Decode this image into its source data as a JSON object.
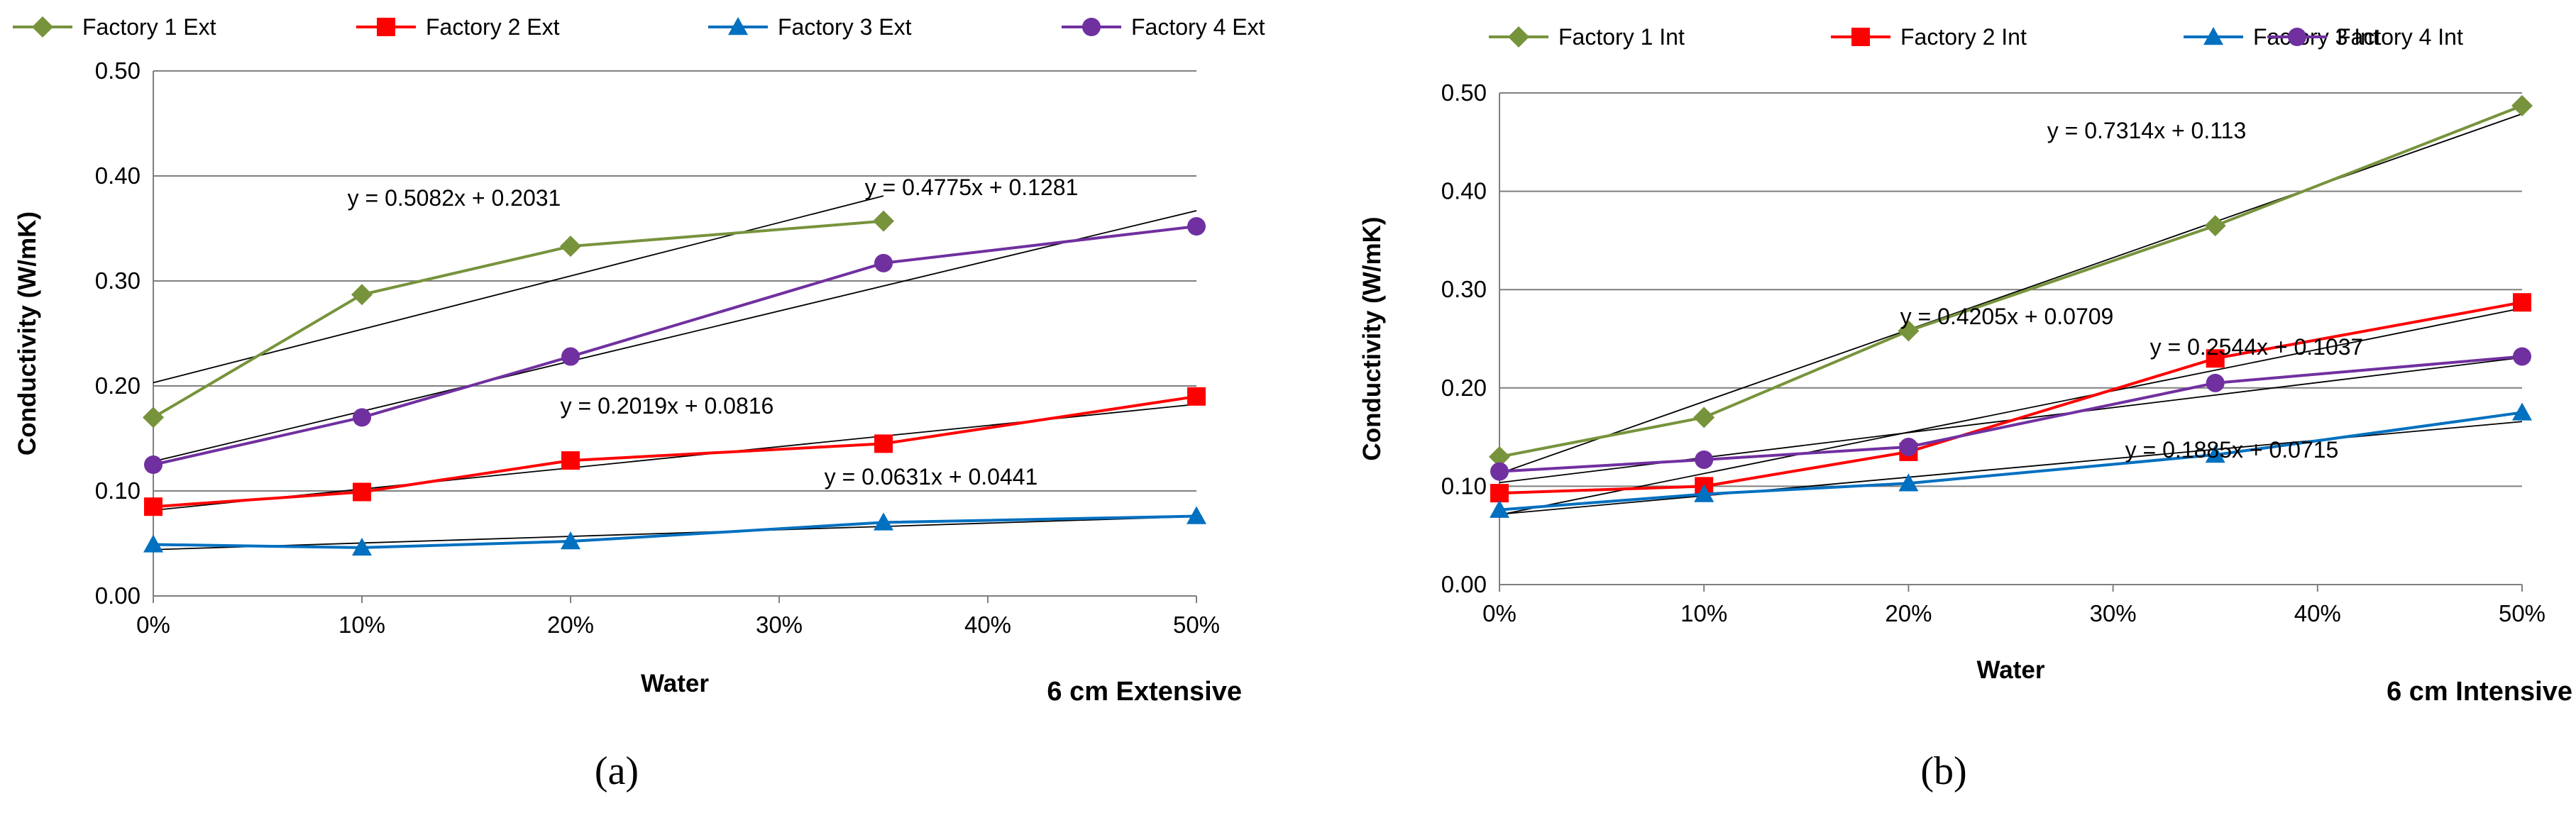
{
  "chart_data": [
    {
      "type": "line",
      "panel_label": "(a)",
      "corner_label": "6 cm Extensive",
      "xlabel": "Water",
      "ylabel": "Conductivity (W/mK)",
      "categories": [
        "0%",
        "10%",
        "20%",
        "35%",
        "50%"
      ],
      "x": [
        0,
        0.1,
        0.2,
        0.35,
        0.5
      ],
      "x_ticks": [
        "0%",
        "10%",
        "20%",
        "30%",
        "40%",
        "50%"
      ],
      "xlim": [
        0,
        0.5
      ],
      "ylim": [
        0,
        0.5
      ],
      "y_ticks": [
        "0.00",
        "0.10",
        "0.20",
        "0.30",
        "0.40",
        "0.50"
      ],
      "grid": "horizontal",
      "legend_position": "top",
      "series": [
        {
          "name": "Factory 1 Ext",
          "color": "#77933c",
          "marker": "diamond",
          "x": [
            0,
            0.1,
            0.2,
            0.35
          ],
          "values": [
            0.17,
            0.287,
            0.333,
            0.357
          ],
          "trend": {
            "slope": 0.5082,
            "intercept": 0.2031,
            "x_end": 0.35,
            "equation": "y = 0.5082x + 0.2031"
          }
        },
        {
          "name": "Factory 2 Ext",
          "color": "#ff0000",
          "marker": "square",
          "x": [
            0,
            0.1,
            0.2,
            0.35,
            0.5
          ],
          "values": [
            0.085,
            0.099,
            0.129,
            0.145,
            0.19
          ],
          "trend": {
            "slope": 0.2019,
            "intercept": 0.0816,
            "x_end": 0.5,
            "equation": "y = 0.2019x + 0.0816"
          }
        },
        {
          "name": "Factory 3 Ext",
          "color": "#0070c0",
          "marker": "triangle",
          "x": [
            0,
            0.1,
            0.2,
            0.35,
            0.5
          ],
          "values": [
            0.049,
            0.046,
            0.052,
            0.07,
            0.076
          ],
          "trend": {
            "slope": 0.0631,
            "intercept": 0.0441,
            "x_end": 0.5,
            "equation": "y = 0.0631x + 0.0441"
          }
        },
        {
          "name": "Factory 4 Ext",
          "color": "#7030a0",
          "marker": "circle",
          "x": [
            0,
            0.1,
            0.2,
            0.35,
            0.5
          ],
          "values": [
            0.125,
            0.17,
            0.228,
            0.317,
            0.352
          ],
          "trend": {
            "slope": 0.4775,
            "intercept": 0.1281,
            "x_end": 0.5,
            "equation": "y = 0.4775x + 0.1281"
          }
        }
      ]
    },
    {
      "type": "line",
      "panel_label": "(b)",
      "corner_label": "6 cm Intensive",
      "xlabel": "Water",
      "ylabel": "Conductivity (W/mK)",
      "categories": [
        "0%",
        "10%",
        "20%",
        "35%",
        "50%"
      ],
      "x": [
        0,
        0.1,
        0.2,
        0.35,
        0.5
      ],
      "x_ticks": [
        "0%",
        "10%",
        "20%",
        "30%",
        "40%",
        "50%"
      ],
      "xlim": [
        0,
        0.5
      ],
      "ylim": [
        0,
        0.5
      ],
      "y_ticks": [
        "0.00",
        "0.10",
        "0.20",
        "0.30",
        "0.40",
        "0.50"
      ],
      "grid": "horizontal",
      "legend_position": "top",
      "series": [
        {
          "name": "Factory 1 Int",
          "color": "#77933c",
          "marker": "diamond",
          "x": [
            0,
            0.1,
            0.2,
            0.35,
            0.5
          ],
          "values": [
            0.13,
            0.17,
            0.258,
            0.365,
            0.487
          ],
          "trend": {
            "slope": 0.7314,
            "intercept": 0.113,
            "x_end": 0.5,
            "equation": "y = 0.7314x + 0.113"
          }
        },
        {
          "name": "Factory 2 Int",
          "color": "#ff0000",
          "marker": "square",
          "x": [
            0,
            0.1,
            0.2,
            0.35,
            0.5
          ],
          "values": [
            0.093,
            0.1,
            0.135,
            0.23,
            0.287
          ],
          "trend": {
            "slope": 0.4205,
            "intercept": 0.0709,
            "x_end": 0.5,
            "equation": "y = 0.4205x + 0.0709"
          }
        },
        {
          "name": "Factory 3 Int",
          "color": "#0070c0",
          "marker": "triangle",
          "x": [
            0,
            0.1,
            0.2,
            0.35,
            0.5
          ],
          "values": [
            0.076,
            0.092,
            0.103,
            0.132,
            0.175
          ],
          "trend": {
            "slope": 0.1885,
            "intercept": 0.0715,
            "x_end": 0.5,
            "equation": "y = 0.1885x + 0.0715"
          }
        },
        {
          "name": "Factory 4 Int",
          "color": "#7030a0",
          "marker": "circle",
          "x": [
            0,
            0.1,
            0.2,
            0.35,
            0.5
          ],
          "values": [
            0.115,
            0.127,
            0.14,
            0.205,
            0.232
          ],
          "trend": {
            "slope": 0.2544,
            "intercept": 0.1037,
            "x_end": 0.5,
            "equation": "y = 0.2544x + 0.1037"
          }
        }
      ]
    }
  ]
}
